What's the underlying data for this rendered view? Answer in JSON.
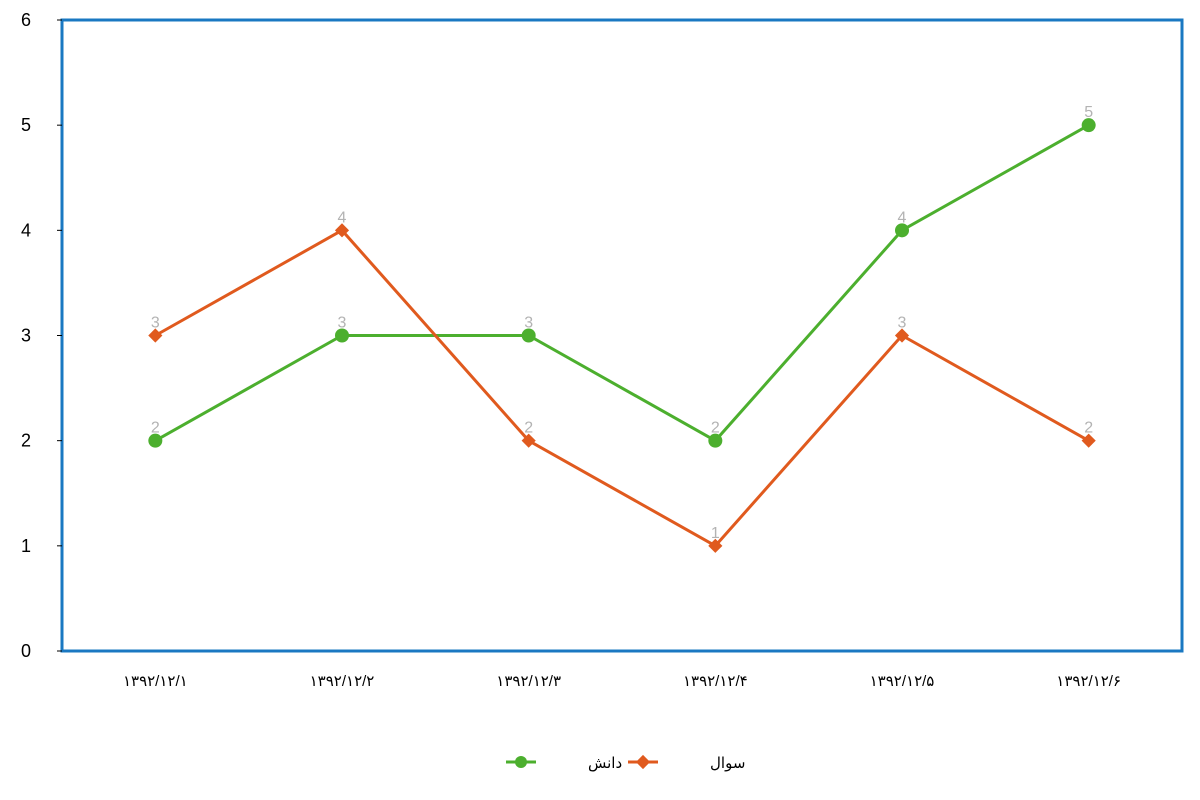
{
  "chart_data": {
    "type": "line",
    "categories": [
      "۱۳۹۲/۱۲/۱",
      "۱۳۹۲/۱۲/۲",
      "۱۳۹۲/۱۲/۳",
      "۱۳۹۲/۱۲/۴",
      "۱۳۹۲/۱۲/۵",
      "۱۳۹۲/۱۲/۶"
    ],
    "series": [
      {
        "name": "دانش",
        "values": [
          2,
          3,
          3,
          2,
          4,
          5
        ],
        "color": "#4caf2e",
        "marker": "circle"
      },
      {
        "name": "سوال",
        "values": [
          3,
          4,
          2,
          1,
          3,
          2
        ],
        "color": "#e05a1e",
        "marker": "diamond"
      }
    ],
    "ylim": [
      0,
      6
    ],
    "yticks": [
      "0",
      "1",
      "2",
      "3",
      "4",
      "5",
      "6"
    ],
    "grid": false,
    "data_labels": true,
    "legend": "bottom-center",
    "frame_color": "#1a78c2",
    "label_color": "#b3b3b3"
  }
}
